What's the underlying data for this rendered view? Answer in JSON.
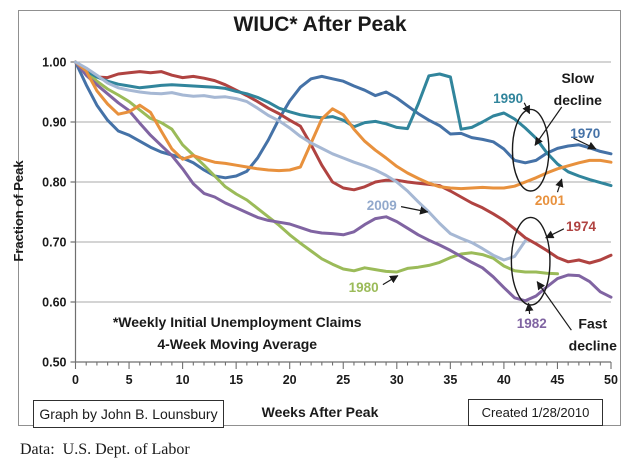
{
  "chart_data": {
    "type": "line",
    "title": "WIUC* After Peak",
    "xlabel": "Weeks After Peak",
    "ylabel": "Fraction of Peak",
    "xlim": [
      0,
      50
    ],
    "ylim": [
      0.5,
      1.0
    ],
    "x_ticks": [
      0,
      5,
      10,
      15,
      20,
      25,
      30,
      35,
      40,
      45,
      50
    ],
    "y_tick_labels": [
      "1.00",
      "0.90",
      "0.80",
      "0.70",
      "0.60",
      "0.50"
    ],
    "grid": "horizontal gridlines at 0.60 through 1.00",
    "legend_position": "none - lines labeled directly with arrows",
    "footnote_lines": [
      "*Weekly Initial Unemployment Claims",
      "4-Week Moving Average"
    ],
    "series": [
      {
        "name": "1970",
        "color": "#4572a7",
        "start_week": 0,
        "values": [
          1.0,
          0.962,
          0.928,
          0.903,
          0.885,
          0.878,
          0.868,
          0.858,
          0.85,
          0.845,
          0.84,
          0.832,
          0.82,
          0.81,
          0.807,
          0.81,
          0.818,
          0.84,
          0.87,
          0.905,
          0.935,
          0.958,
          0.972,
          0.976,
          0.972,
          0.968,
          0.96,
          0.953,
          0.944,
          0.95,
          0.94,
          0.927,
          0.914,
          0.903,
          0.894,
          0.88,
          0.881,
          0.874,
          0.871,
          0.867,
          0.855,
          0.836,
          0.832,
          0.836,
          0.848,
          0.856,
          0.86,
          0.862,
          0.857,
          0.851,
          0.847
        ]
      },
      {
        "name": "1974",
        "color": "#b04341",
        "start_week": 0,
        "values": [
          1.0,
          0.985,
          0.975,
          0.974,
          0.98,
          0.982,
          0.984,
          0.982,
          0.984,
          0.978,
          0.974,
          0.976,
          0.973,
          0.969,
          0.962,
          0.953,
          0.944,
          0.934,
          0.923,
          0.914,
          0.903,
          0.893,
          0.862,
          0.828,
          0.8,
          0.79,
          0.787,
          0.792,
          0.8,
          0.803,
          0.803,
          0.8,
          0.798,
          0.796,
          0.794,
          0.785,
          0.775,
          0.765,
          0.757,
          0.747,
          0.736,
          0.722,
          0.707,
          0.697,
          0.686,
          0.674,
          0.667,
          0.67,
          0.665,
          0.67,
          0.678
        ]
      },
      {
        "name": "1980",
        "color": "#9bbb59",
        "start_week": 0,
        "values": [
          1.0,
          0.985,
          0.968,
          0.955,
          0.945,
          0.934,
          0.92,
          0.906,
          0.899,
          0.888,
          0.862,
          0.845,
          0.828,
          0.81,
          0.792,
          0.78,
          0.77,
          0.756,
          0.742,
          0.728,
          0.712,
          0.698,
          0.685,
          0.672,
          0.663,
          0.655,
          0.652,
          0.657,
          0.654,
          0.651,
          0.65,
          0.656,
          0.658,
          0.661,
          0.666,
          0.674,
          0.68,
          0.682,
          0.679,
          0.673,
          0.66,
          0.652,
          0.65,
          0.65,
          0.648,
          0.647
        ]
      },
      {
        "name": "1982",
        "color": "#8064a2",
        "start_week": 0,
        "values": [
          1.0,
          0.978,
          0.962,
          0.947,
          0.932,
          0.919,
          0.898,
          0.878,
          0.861,
          0.844,
          0.822,
          0.797,
          0.781,
          0.775,
          0.765,
          0.757,
          0.749,
          0.741,
          0.736,
          0.733,
          0.73,
          0.724,
          0.718,
          0.715,
          0.714,
          0.712,
          0.717,
          0.729,
          0.739,
          0.742,
          0.734,
          0.723,
          0.712,
          0.703,
          0.695,
          0.686,
          0.676,
          0.666,
          0.657,
          0.642,
          0.624,
          0.607,
          0.602,
          0.61,
          0.625,
          0.639,
          0.645,
          0.644,
          0.634,
          0.617,
          0.608
        ]
      },
      {
        "name": "1990",
        "color": "#31859c",
        "start_week": 0,
        "values": [
          1.0,
          0.985,
          0.975,
          0.968,
          0.963,
          0.96,
          0.957,
          0.959,
          0.961,
          0.962,
          0.961,
          0.96,
          0.959,
          0.958,
          0.956,
          0.951,
          0.947,
          0.941,
          0.933,
          0.923,
          0.917,
          0.912,
          0.909,
          0.907,
          0.909,
          0.903,
          0.892,
          0.899,
          0.901,
          0.897,
          0.891,
          0.889,
          0.93,
          0.977,
          0.98,
          0.975,
          0.888,
          0.891,
          0.9,
          0.91,
          0.915,
          0.905,
          0.89,
          0.873,
          0.849,
          0.83,
          0.817,
          0.81,
          0.804,
          0.799,
          0.794
        ]
      },
      {
        "name": "2001",
        "color": "#e8913d",
        "start_week": 0,
        "values": [
          1.0,
          0.985,
          0.952,
          0.93,
          0.913,
          0.917,
          0.928,
          0.916,
          0.885,
          0.855,
          0.838,
          0.844,
          0.838,
          0.833,
          0.831,
          0.828,
          0.825,
          0.822,
          0.82,
          0.819,
          0.82,
          0.825,
          0.865,
          0.905,
          0.922,
          0.912,
          0.888,
          0.868,
          0.853,
          0.84,
          0.826,
          0.815,
          0.806,
          0.798,
          0.792,
          0.79,
          0.789,
          0.79,
          0.791,
          0.79,
          0.79,
          0.793,
          0.8,
          0.807,
          0.815,
          0.822,
          0.827,
          0.832,
          0.836,
          0.836,
          0.833
        ]
      },
      {
        "name": "2009",
        "color": "#a6b8d4",
        "start_week": 0,
        "values": [
          1.0,
          0.99,
          0.978,
          0.965,
          0.957,
          0.953,
          0.95,
          0.948,
          0.947,
          0.949,
          0.945,
          0.943,
          0.944,
          0.941,
          0.942,
          0.939,
          0.934,
          0.923,
          0.911,
          0.902,
          0.89,
          0.876,
          0.865,
          0.856,
          0.847,
          0.84,
          0.833,
          0.827,
          0.82,
          0.811,
          0.8,
          0.785,
          0.767,
          0.75,
          0.731,
          0.714,
          0.706,
          0.699,
          0.689,
          0.678,
          0.67,
          0.676,
          0.702
        ]
      }
    ],
    "annotations": [
      {
        "id": "label-1990",
        "lines": [
          "1990"
        ],
        "color": "#31859c",
        "week": 40.4,
        "frac": 0.94,
        "size": 13.5,
        "arrow": {
          "from": [
            41.9,
            0.932
          ],
          "to": [
            42.4,
            0.914
          ]
        }
      },
      {
        "id": "label-slow-decline",
        "lines": [
          "Slow",
          "decline"
        ],
        "color": "#1a1a1a",
        "week": 46.9,
        "frac": 0.955,
        "size": 14,
        "arrow": {
          "from": [
            45.4,
            0.925
          ],
          "to": [
            42.9,
            0.861
          ]
        }
      },
      {
        "id": "label-1970",
        "lines": [
          "1970"
        ],
        "color": "#4572a7",
        "week": 47.6,
        "frac": 0.882,
        "size": 13.5,
        "arrow": {
          "from": [
            46.5,
            0.873
          ],
          "to": [
            48.6,
            0.855
          ]
        }
      },
      {
        "id": "label-2001",
        "lines": [
          "2001"
        ],
        "color": "#e8913d",
        "week": 44.3,
        "frac": 0.77,
        "size": 13.5,
        "arrow": {
          "from": [
            45.0,
            0.783
          ],
          "to": [
            45.4,
            0.805
          ]
        }
      },
      {
        "id": "label-1974",
        "lines": [
          "1974"
        ],
        "color": "#b04341",
        "week": 47.2,
        "frac": 0.727,
        "size": 13.5,
        "arrow": {
          "from": [
            45.6,
            0.722
          ],
          "to": [
            43.9,
            0.707
          ]
        }
      },
      {
        "id": "label-2009",
        "lines": [
          "2009"
        ],
        "color": "#92a9cc",
        "week": 28.6,
        "frac": 0.762,
        "size": 13.5,
        "arrow": {
          "from": [
            30.4,
            0.759
          ],
          "to": [
            32.9,
            0.75
          ]
        }
      },
      {
        "id": "label-1980",
        "lines": [
          "1980"
        ],
        "color": "#9bbb59",
        "week": 26.9,
        "frac": 0.625,
        "size": 13.5,
        "arrow": {
          "from": [
            28.7,
            0.629
          ],
          "to": [
            30.1,
            0.644
          ]
        }
      },
      {
        "id": "label-1982",
        "lines": [
          "1982"
        ],
        "color": "#8064a2",
        "week": 42.6,
        "frac": 0.565,
        "size": 13.5,
        "arrow": {
          "from": [
            42.4,
            0.58
          ],
          "to": [
            42.3,
            0.598
          ]
        }
      },
      {
        "id": "label-fast-decline",
        "lines": [
          "Fast",
          "decline"
        ],
        "color": "#1a1a1a",
        "week": 48.3,
        "frac": 0.546,
        "size": 14,
        "arrow": {
          "from": [
            46.3,
            0.553
          ],
          "to": [
            43.1,
            0.634
          ]
        }
      },
      {
        "id": "footnote",
        "lines": [
          "*Weekly Initial Unemployment Claims",
          "4-Week Moving Average"
        ],
        "color": "#1a1a1a",
        "week": 15.1,
        "frac": 0.548,
        "size": 14,
        "arrow": null
      }
    ],
    "ellipses": [
      {
        "id": "slow-decline-ellipse",
        "cx_week": 42.5,
        "cy_frac": 0.853,
        "rx_weeks": 1.7,
        "ry_frac": 0.068
      },
      {
        "id": "fast-decline-ellipse",
        "cx_week": 42.5,
        "cy_frac": 0.668,
        "rx_weeks": 1.8,
        "ry_frac": 0.073
      }
    ]
  },
  "footer": {
    "graph_credit": "Graph by John B. Lounsbury",
    "created": "Created 1/28/2010",
    "source": "Data:  U.S. Dept. of Labor"
  },
  "style_colors": {
    "grid": "#a8a8a8",
    "axis": "#6f6f6f",
    "frame": "#909090",
    "annotation_ink": "#1a1a1a"
  }
}
